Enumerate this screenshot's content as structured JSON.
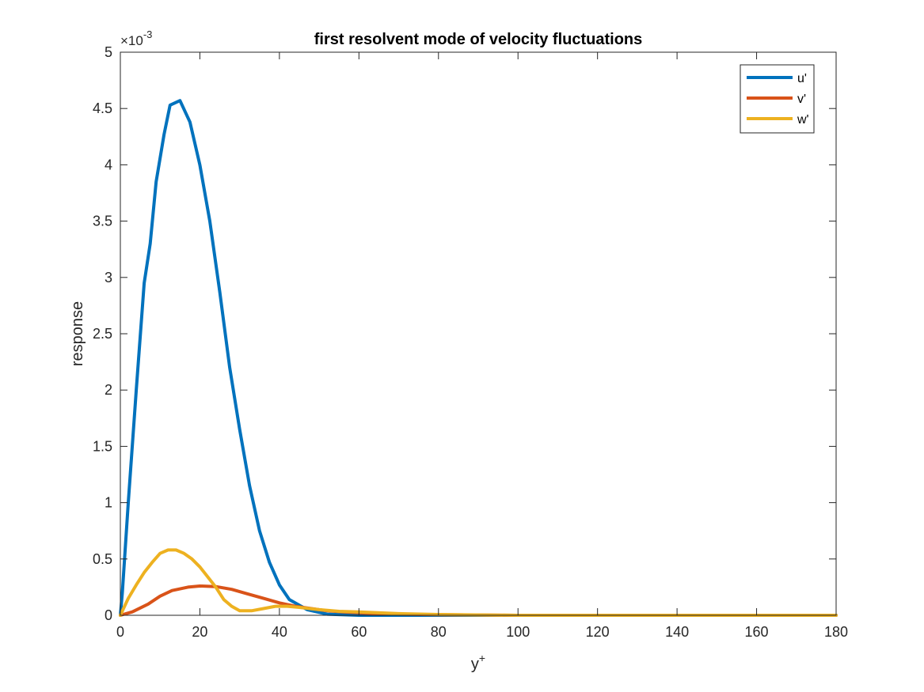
{
  "chart_data": {
    "type": "line",
    "title": "first resolvent mode of velocity fluctuations",
    "xlabel": "y",
    "xlabel_superscript": "+",
    "ylabel": "response",
    "y_exponent_prefix": "×10",
    "y_exponent": "-3",
    "xlim": [
      0,
      180
    ],
    "ylim": [
      0,
      5
    ],
    "xticks": [
      0,
      20,
      40,
      60,
      80,
      100,
      120,
      140,
      160,
      180
    ],
    "xtick_labels": [
      "0",
      "20",
      "40",
      "60",
      "80",
      "100",
      "120",
      "140",
      "160",
      "180"
    ],
    "yticks": [
      0,
      0.5,
      1,
      1.5,
      2,
      2.5,
      3,
      3.5,
      4,
      4.5,
      5
    ],
    "ytick_labels": [
      "0",
      "0.5",
      "1",
      "1.5",
      "2",
      "2.5",
      "3",
      "3.5",
      "4",
      "4.5",
      "5"
    ],
    "grid": false,
    "legend_position": "top-right",
    "series": [
      {
        "name": "u'",
        "color": "#0072BD",
        "points": [
          [
            0,
            0
          ],
          [
            0.5,
            0.2
          ],
          [
            2,
            1.0
          ],
          [
            4,
            2.0
          ],
          [
            6,
            2.95
          ],
          [
            7.5,
            3.3
          ],
          [
            9,
            3.85
          ],
          [
            11,
            4.27
          ],
          [
            12.5,
            4.53
          ],
          [
            15,
            4.57
          ],
          [
            17.5,
            4.38
          ],
          [
            20,
            4.0
          ],
          [
            22.5,
            3.5
          ],
          [
            25,
            2.87
          ],
          [
            27.5,
            2.2
          ],
          [
            30,
            1.65
          ],
          [
            32.5,
            1.15
          ],
          [
            35,
            0.75
          ],
          [
            37.5,
            0.47
          ],
          [
            40,
            0.27
          ],
          [
            42.5,
            0.14
          ],
          [
            47,
            0.05
          ],
          [
            52,
            0.01
          ],
          [
            60,
            0
          ],
          [
            80,
            0
          ],
          [
            100,
            0
          ],
          [
            120,
            0
          ],
          [
            140,
            0
          ],
          [
            160,
            0
          ],
          [
            180,
            0
          ]
        ]
      },
      {
        "name": "v'",
        "color": "#D95319",
        "points": [
          [
            0,
            0
          ],
          [
            3,
            0.03
          ],
          [
            7,
            0.1
          ],
          [
            10,
            0.17
          ],
          [
            13,
            0.22
          ],
          [
            17,
            0.25
          ],
          [
            20,
            0.26
          ],
          [
            24,
            0.255
          ],
          [
            28,
            0.23
          ],
          [
            32,
            0.19
          ],
          [
            36,
            0.15
          ],
          [
            40,
            0.11
          ],
          [
            44,
            0.08
          ],
          [
            48,
            0.06
          ],
          [
            52,
            0.04
          ],
          [
            56,
            0.03
          ],
          [
            62,
            0.02
          ],
          [
            70,
            0.01
          ],
          [
            80,
            0.005
          ],
          [
            100,
            0
          ],
          [
            120,
            0
          ],
          [
            140,
            0
          ],
          [
            160,
            0
          ],
          [
            180,
            0
          ]
        ]
      },
      {
        "name": "w'",
        "color": "#EDB120",
        "points": [
          [
            0,
            0
          ],
          [
            2,
            0.15
          ],
          [
            4,
            0.27
          ],
          [
            6,
            0.38
          ],
          [
            8,
            0.47
          ],
          [
            10,
            0.55
          ],
          [
            12,
            0.58
          ],
          [
            14,
            0.58
          ],
          [
            16,
            0.55
          ],
          [
            18,
            0.5
          ],
          [
            20,
            0.43
          ],
          [
            22,
            0.34
          ],
          [
            24,
            0.25
          ],
          [
            26,
            0.14
          ],
          [
            28,
            0.08
          ],
          [
            30,
            0.04
          ],
          [
            33,
            0.04
          ],
          [
            36,
            0.06
          ],
          [
            39,
            0.08
          ],
          [
            42,
            0.08
          ],
          [
            45,
            0.07
          ],
          [
            50,
            0.05
          ],
          [
            55,
            0.035
          ],
          [
            60,
            0.03
          ],
          [
            70,
            0.015
          ],
          [
            80,
            0.007
          ],
          [
            100,
            0
          ],
          [
            120,
            0
          ],
          [
            140,
            0
          ],
          [
            160,
            0
          ],
          [
            180,
            0
          ]
        ]
      }
    ]
  }
}
